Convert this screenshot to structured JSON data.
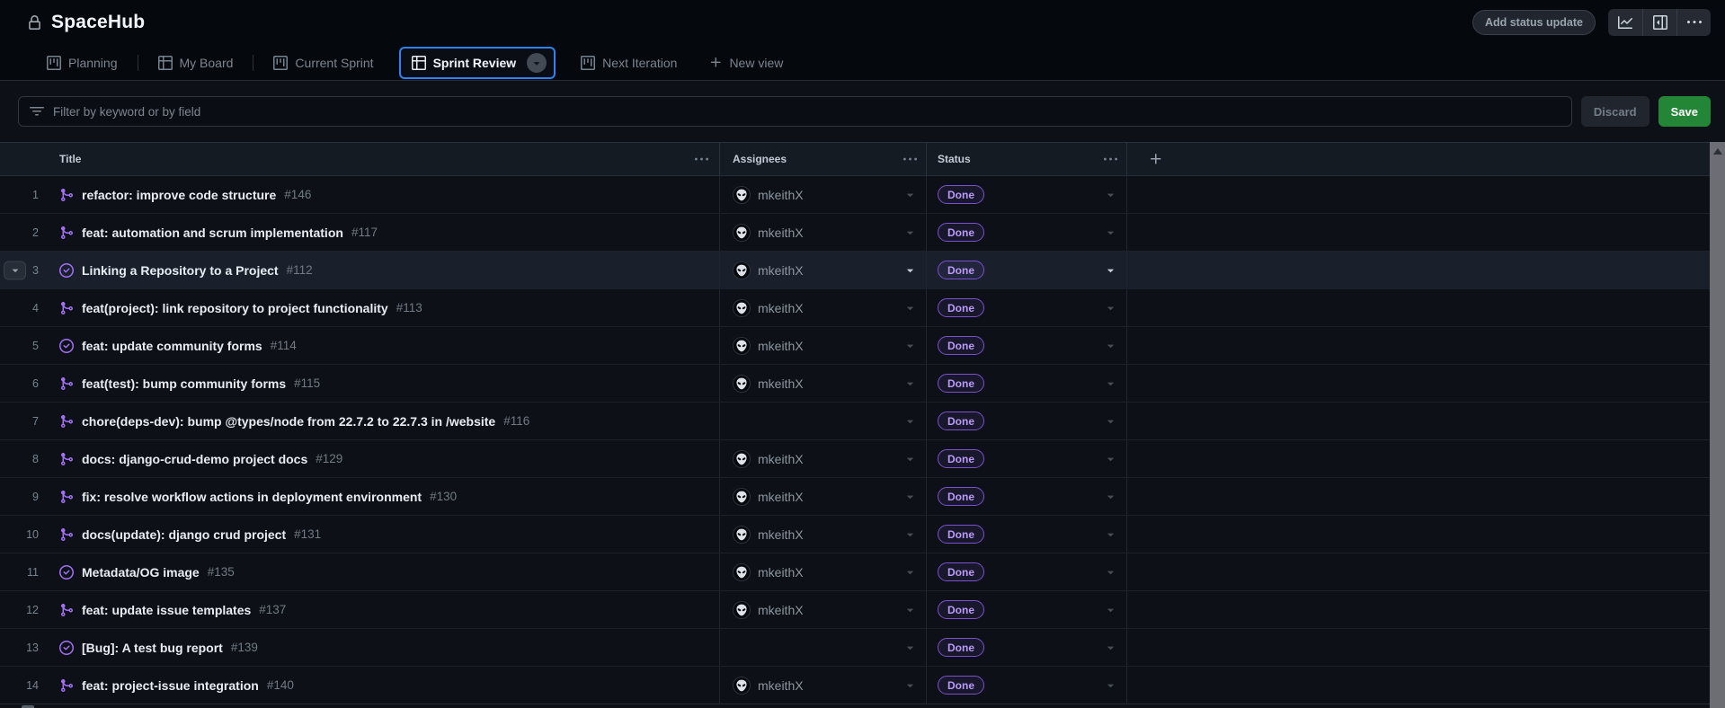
{
  "app": {
    "title": "SpaceHub",
    "visibility_icon": "lock-icon"
  },
  "header": {
    "add_status_update_label": "Add status update",
    "toolbar_icons": [
      "insights-graph-icon",
      "side-panel-expand-icon",
      "kebab-menu-icon"
    ]
  },
  "tabs": {
    "items": [
      {
        "label": "Planning",
        "icon": "project-icon",
        "active": false
      },
      {
        "label": "My Board",
        "icon": "table-icon",
        "active": false
      },
      {
        "label": "Current Sprint",
        "icon": "project-icon",
        "active": false
      },
      {
        "label": "Sprint Review",
        "icon": "table-icon",
        "active": true
      },
      {
        "label": "Next Iteration",
        "icon": "project-icon",
        "active": false
      }
    ],
    "new_view_label": "New view"
  },
  "filter": {
    "placeholder": "Filter by keyword or by field",
    "discard_label": "Discard",
    "save_label": "Save"
  },
  "table": {
    "columns": [
      {
        "label": "Title"
      },
      {
        "label": "Assignees"
      },
      {
        "label": "Status"
      },
      {
        "label": "+"
      }
    ],
    "rows": [
      {
        "num": 1,
        "icon": "git-merge-icon",
        "title": "refactor: improve code structure",
        "number": "#146",
        "assignee": "mkeithX",
        "status": "Done",
        "selected": false
      },
      {
        "num": 2,
        "icon": "git-merge-icon",
        "title": "feat: automation and scrum implementation",
        "number": "#117",
        "assignee": "mkeithX",
        "status": "Done",
        "selected": false
      },
      {
        "num": 3,
        "icon": "issue-closed-icon",
        "title": "Linking a Repository to a Project",
        "number": "#112",
        "assignee": "mkeithX",
        "status": "Done",
        "selected": true
      },
      {
        "num": 4,
        "icon": "git-merge-icon",
        "title": "feat(project): link repository to project functionality",
        "number": "#113",
        "assignee": "mkeithX",
        "status": "Done",
        "selected": false
      },
      {
        "num": 5,
        "icon": "issue-closed-icon",
        "title": "feat: update community forms",
        "number": "#114",
        "assignee": "mkeithX",
        "status": "Done",
        "selected": false
      },
      {
        "num": 6,
        "icon": "git-merge-icon",
        "title": "feat(test): bump community forms",
        "number": "#115",
        "assignee": "mkeithX",
        "status": "Done",
        "selected": false
      },
      {
        "num": 7,
        "icon": "git-merge-icon",
        "title": "chore(deps-dev): bump @types/node from 22.7.2 to 22.7.3 in /website",
        "number": "#116",
        "assignee": null,
        "status": "Done",
        "selected": false
      },
      {
        "num": 8,
        "icon": "git-merge-icon",
        "title": "docs: django-crud-demo project docs",
        "number": "#129",
        "assignee": "mkeithX",
        "status": "Done",
        "selected": false
      },
      {
        "num": 9,
        "icon": "git-merge-icon",
        "title": "fix: resolve workflow actions in deployment environment",
        "number": "#130",
        "assignee": "mkeithX",
        "status": "Done",
        "selected": false
      },
      {
        "num": 10,
        "icon": "git-merge-icon",
        "title": "docs(update): django crud project",
        "number": "#131",
        "assignee": "mkeithX",
        "status": "Done",
        "selected": false
      },
      {
        "num": 11,
        "icon": "issue-closed-icon",
        "title": "Metadata/OG image",
        "number": "#135",
        "assignee": "mkeithX",
        "status": "Done",
        "selected": false
      },
      {
        "num": 12,
        "icon": "git-merge-icon",
        "title": "feat: update issue templates",
        "number": "#137",
        "assignee": "mkeithX",
        "status": "Done",
        "selected": false
      },
      {
        "num": 13,
        "icon": "issue-closed-icon",
        "title": "[Bug]: A test bug report",
        "number": "#139",
        "assignee": null,
        "status": "Done",
        "selected": false
      },
      {
        "num": 14,
        "icon": "git-merge-icon",
        "title": "feat: project-issue integration",
        "number": "#140",
        "assignee": "mkeithX",
        "status": "Done",
        "selected": false
      }
    ]
  },
  "colors": {
    "accent_blue": "#2f81f7",
    "item_purple": "#a371f7",
    "done_badge_text": "#b99bf8",
    "done_badge_border": "#7a52cf",
    "save_green": "#238636",
    "page_bg": "#0d1117",
    "selected_row_bg": "#19202b"
  }
}
